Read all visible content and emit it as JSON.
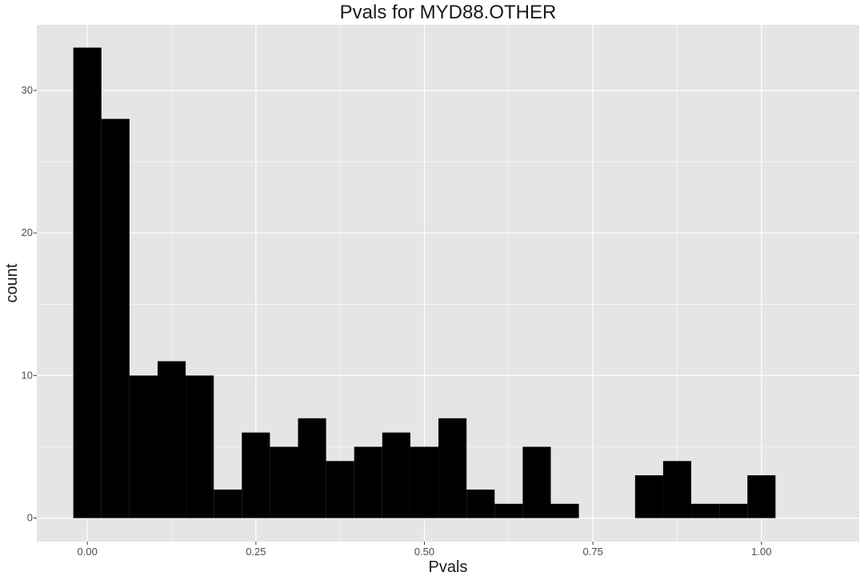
{
  "chart_data": {
    "type": "bar",
    "title": "Pvals for MYD88.OTHER",
    "xlabel": "Pvals",
    "ylabel": "count",
    "xlim": [
      -0.075,
      1.145
    ],
    "ylim": [
      -1.65,
      34.6
    ],
    "x_ticks": [
      0.0,
      0.25,
      0.5,
      0.75,
      1.0
    ],
    "x_tick_labels": [
      "0.00",
      "0.25",
      "0.50",
      "0.75",
      "1.00"
    ],
    "y_ticks": [
      0,
      10,
      20,
      30
    ],
    "y_tick_labels": [
      "0",
      "10",
      "20",
      "30"
    ],
    "grid": true,
    "bin_width": 0.041667,
    "bin_centers": [
      0.0,
      0.041667,
      0.083333,
      0.125,
      0.166667,
      0.208333,
      0.25,
      0.291667,
      0.333333,
      0.375,
      0.416667,
      0.458333,
      0.5,
      0.541667,
      0.583333,
      0.625,
      0.666667,
      0.708333,
      0.75,
      0.791667,
      0.833333,
      0.875,
      0.916667,
      0.958333,
      1.0
    ],
    "counts": [
      33,
      28,
      10,
      11,
      10,
      2,
      6,
      5,
      7,
      4,
      5,
      6,
      5,
      7,
      2,
      1,
      5,
      1,
      0,
      0,
      3,
      4,
      1,
      1,
      3
    ],
    "colors": {
      "panel": "#e5e5e5",
      "grid": "#ffffff",
      "bar": "#000000",
      "text": "#1a1a1a",
      "tick_text": "#4d4d4d"
    }
  }
}
